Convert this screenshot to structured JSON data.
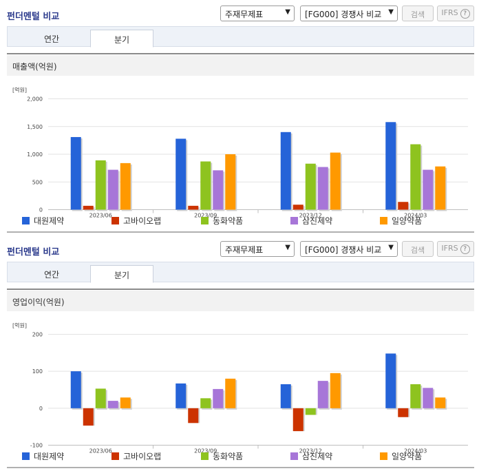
{
  "panels": [
    {
      "title": "펀더멘털 비교",
      "select_statement": "주재무제표",
      "select_compare": "[FG000] 경쟁사 비교",
      "search_label": "검색",
      "ifrs_label": "IFRS",
      "help_glyph": "?",
      "tabs": [
        "연간",
        "분기"
      ],
      "active_tab": 1,
      "chart_heading": "매출액(억원)",
      "unit_label": "[억원]"
    },
    {
      "title": "펀더멘털 비교",
      "select_statement": "주재무제표",
      "select_compare": "[FG000] 경쟁사 비교",
      "search_label": "검색",
      "ifrs_label": "IFRS",
      "help_glyph": "?",
      "tabs": [
        "연간",
        "분기"
      ],
      "active_tab": 1,
      "chart_heading": "영업이익(억원)",
      "unit_label": "[억원]"
    }
  ],
  "chart_data": [
    {
      "type": "bar",
      "title": "매출액(억원)",
      "ylabel": "[억원]",
      "categories": [
        "2023/06",
        "2023/09",
        "2023/12",
        "2024/03"
      ],
      "ylim": [
        0,
        2000
      ],
      "yticks": [
        0,
        500,
        1000,
        1500,
        2000
      ],
      "ytick_labels": [
        "0",
        "500",
        "1,000",
        "1,500",
        "2,000"
      ],
      "grid": true,
      "legend": "bottom",
      "series": [
        {
          "name": "대원제약",
          "color": "#2563d8",
          "values": [
            1310,
            1280,
            1400,
            1580
          ]
        },
        {
          "name": "고바이오랩",
          "color": "#cc3300",
          "values": [
            70,
            70,
            90,
            140
          ]
        },
        {
          "name": "동화약품",
          "color": "#8ec31f",
          "values": [
            890,
            870,
            830,
            1180
          ]
        },
        {
          "name": "삼진제약",
          "color": "#a776d8",
          "values": [
            720,
            710,
            770,
            720
          ]
        },
        {
          "name": "일양약품",
          "color": "#ff9900",
          "values": [
            840,
            1000,
            1030,
            780
          ]
        }
      ]
    },
    {
      "type": "bar",
      "title": "영업이익(억원)",
      "ylabel": "[억원]",
      "categories": [
        "2023/06",
        "2023/09",
        "2023/12",
        "2024/03"
      ],
      "ylim": [
        -100,
        200
      ],
      "yticks": [
        -100,
        0,
        100,
        200
      ],
      "ytick_labels": [
        "-100",
        "0",
        "100",
        "200"
      ],
      "grid": true,
      "legend": "bottom",
      "series": [
        {
          "name": "대원제약",
          "color": "#2563d8",
          "values": [
            100,
            67,
            65,
            148
          ]
        },
        {
          "name": "고바이오랩",
          "color": "#cc3300",
          "values": [
            -47,
            -40,
            -62,
            -24
          ]
        },
        {
          "name": "동화약품",
          "color": "#8ec31f",
          "values": [
            53,
            27,
            -18,
            65
          ]
        },
        {
          "name": "삼진제약",
          "color": "#a776d8",
          "values": [
            20,
            52,
            74,
            55
          ]
        },
        {
          "name": "일양약품",
          "color": "#ff9900",
          "values": [
            29,
            80,
            95,
            29
          ]
        }
      ]
    }
  ]
}
